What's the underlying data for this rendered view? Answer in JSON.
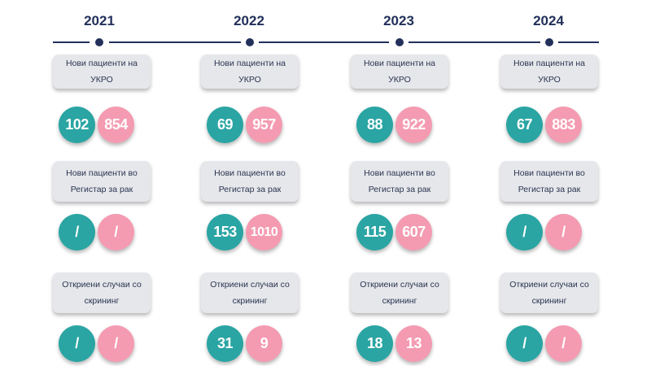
{
  "colors": {
    "teal": "#2aa5a3",
    "pink": "#f49bb1",
    "navy": "#22305a",
    "label_bg": "#e6e7eb"
  },
  "years": [
    {
      "year": "2021",
      "rows": [
        {
          "label": "Нови пациенти на УКРО",
          "teal": "102",
          "pink": "854"
        },
        {
          "label": "Нови пациенти во Регистар за рак",
          "teal": "/",
          "pink": "/"
        },
        {
          "label": "Откриени случаи со скрининг",
          "teal": "/",
          "pink": "/"
        }
      ]
    },
    {
      "year": "2022",
      "rows": [
        {
          "label": "Нови пациенти на УКРО",
          "teal": "69",
          "pink": "957"
        },
        {
          "label": "Нови пациенти во Регистар за рак",
          "teal": "153",
          "pink": "1010"
        },
        {
          "label": "Откриени случаи со скрининг",
          "teal": "31",
          "pink": "9"
        }
      ]
    },
    {
      "year": "2023",
      "rows": [
        {
          "label": "Нови пациенти на УКРО",
          "teal": "88",
          "pink": "922"
        },
        {
          "label": "Нови пациенти во Регистар за рак",
          "teal": "115",
          "pink": "607"
        },
        {
          "label": "Откриени случаи со скрининг",
          "teal": "18",
          "pink": "13"
        }
      ]
    },
    {
      "year": "2024",
      "rows": [
        {
          "label": "Нови пациенти на УКРО",
          "teal": "67",
          "pink": "883"
        },
        {
          "label": "Нови пациенти во Регистар за рак",
          "teal": "/",
          "pink": "/"
        },
        {
          "label": "Откриени случаи со скрининг",
          "teal": "/",
          "pink": "/"
        }
      ]
    }
  ]
}
